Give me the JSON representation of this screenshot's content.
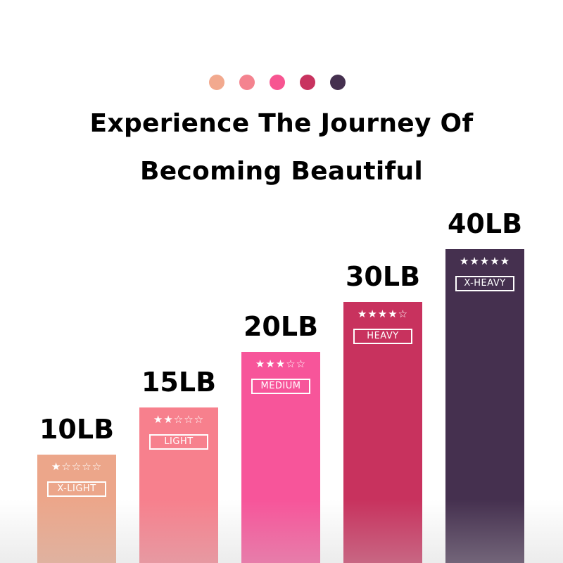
{
  "dots": [
    {
      "color": "#f2a98e"
    },
    {
      "color": "#f4838f"
    },
    {
      "color": "#f75591"
    },
    {
      "color": "#c8335f"
    },
    {
      "color": "#45304f"
    }
  ],
  "title": {
    "line1": "Experience The Journey Of",
    "line2": "Becoming Beautiful"
  },
  "bands": [
    {
      "weight": "10LB",
      "stars": "★☆☆☆☆",
      "rating": 1,
      "level": "X-LIGHT",
      "color": "#eca68a"
    },
    {
      "weight": "15LB",
      "stars": "★★☆☆☆",
      "rating": 2,
      "level": "LIGHT",
      "color": "#f7808d"
    },
    {
      "weight": "20LB",
      "stars": "★★★☆☆",
      "rating": 3,
      "level": "MEDIUM",
      "color": "#f7559a"
    },
    {
      "weight": "30LB",
      "stars": "★★★★☆",
      "rating": 4,
      "level": "HEAVY",
      "color": "#c8325e"
    },
    {
      "weight": "40LB",
      "stars": "★★★★★",
      "rating": 5,
      "level": "X-HEAVY",
      "color": "#45304f"
    }
  ]
}
